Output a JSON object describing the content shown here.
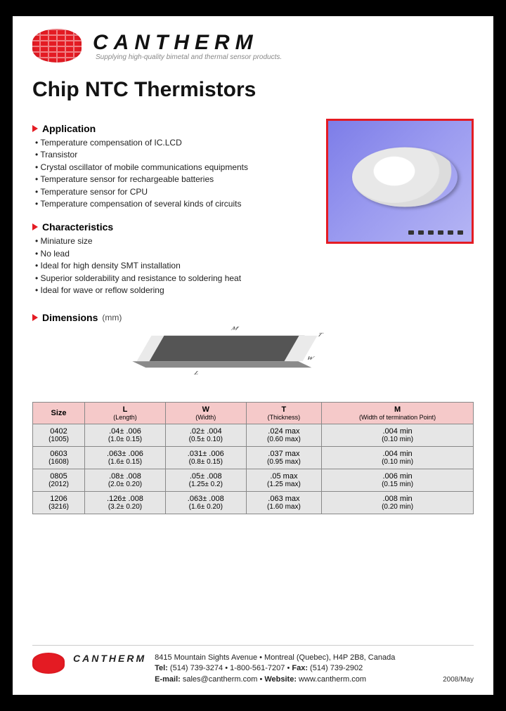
{
  "header": {
    "brand": "CANTHERM",
    "tagline": "Supplying high-quality bimetal and thermal sensor products.",
    "logo_color": "#e41b23"
  },
  "doc": {
    "title": "Chip NTC Thermistors",
    "date": "2008/May"
  },
  "sections": {
    "application": {
      "title": "Application",
      "items": [
        "Temperature compensation of IC.LCD",
        "Transistor",
        "Crystal oscillator of mobile communications equipments",
        "Temperature sensor for rechargeable batteries",
        "Temperature sensor for CPU",
        "Temperature compensation of several kinds of circuits"
      ]
    },
    "characteristics": {
      "title": "Characteristics",
      "items": [
        "Miniature size",
        "No lead",
        "Ideal for high density SMT installation",
        "Superior solderability and resistance to soldering heat",
        "Ideal for wave or reflow soldering"
      ]
    },
    "dimensions": {
      "title": "Dimensions",
      "unit": "(mm)",
      "diagram_labels": {
        "M": "M",
        "T": "T",
        "W": "W",
        "L": "L"
      }
    }
  },
  "product_image": {
    "border_color": "#e41b23",
    "bg_gradient_from": "#7d7de8",
    "bg_gradient_to": "#b5b5f4"
  },
  "table": {
    "header_bg": "#f5c9c9",
    "row_bg": "#e6e6e6",
    "border_color": "#888888",
    "columns": [
      {
        "head": "Size",
        "sub": ""
      },
      {
        "head": "L",
        "sub": "(Length)"
      },
      {
        "head": "W",
        "sub": "(Width)"
      },
      {
        "head": "T",
        "sub": "(Thickness)"
      },
      {
        "head": "M",
        "sub": "(Width of termination Point)"
      }
    ],
    "rows": [
      {
        "size": [
          "0402",
          "(1005)"
        ],
        "L": [
          ".04± .006",
          "(1.0± 0.15)"
        ],
        "W": [
          ".02± .004",
          "(0.5± 0.10)"
        ],
        "T": [
          ".024 max",
          "(0.60 max)"
        ],
        "M": [
          ".004 min",
          "(0.10 min)"
        ]
      },
      {
        "size": [
          "0603",
          "(1608)"
        ],
        "L": [
          ".063± .006",
          "(1.6± 0.15)"
        ],
        "W": [
          ".031± .006",
          "(0.8± 0.15)"
        ],
        "T": [
          ".037 max",
          "(0.95 max)"
        ],
        "M": [
          ".004 min",
          "(0.10 min)"
        ]
      },
      {
        "size": [
          "0805",
          "(2012)"
        ],
        "L": [
          ".08± .008",
          "(2.0± 0.20)"
        ],
        "W": [
          ".05± .008",
          "(1.25± 0.2)"
        ],
        "T": [
          ".05 max",
          "(1.25 max)"
        ],
        "M": [
          ".006 min",
          "(0.15 min)"
        ]
      },
      {
        "size": [
          "1206",
          "(3216)"
        ],
        "L": [
          ".126± .008",
          "(3.2± 0.20)"
        ],
        "W": [
          ".063± .008",
          "(1.6± 0.20)"
        ],
        "T": [
          ".063 max",
          "(1.60 max)"
        ],
        "M": [
          ".008 min",
          "(0.20 min)"
        ]
      }
    ]
  },
  "footer": {
    "brand": "CANTHERM",
    "address": "8415 Mountain Sights Avenue • Montreal (Quebec), H4P 2B8, Canada",
    "tel_label": "Tel:",
    "tel": " (514) 739-3274 • 1-800-561-7207 • ",
    "fax_label": "Fax:",
    "fax": " (514) 739-2902",
    "email_label": "E-mail:",
    "email": " sales@cantherm.com • ",
    "web_label": "Website:",
    "web": " www.cantherm.com"
  }
}
